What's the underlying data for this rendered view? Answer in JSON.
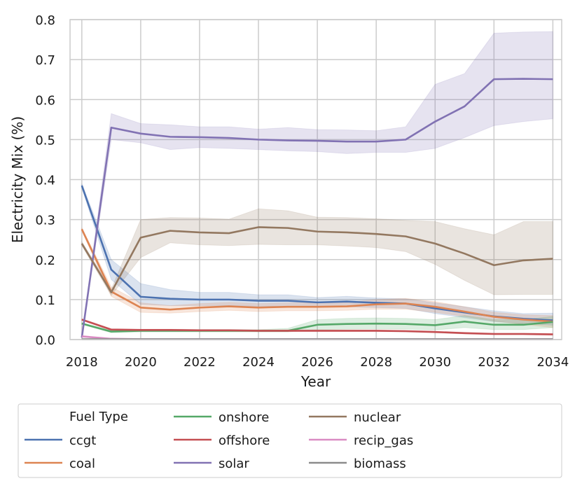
{
  "chart_data": {
    "type": "line",
    "title": "",
    "xlabel": "Year",
    "ylabel": "Electricity Mix (%)",
    "xlim": [
      2017.6,
      2034.3
    ],
    "ylim": [
      0.0,
      0.8
    ],
    "xticks": [
      2018,
      2020,
      2022,
      2024,
      2026,
      2028,
      2030,
      2032,
      2034
    ],
    "yticks": [
      0.0,
      0.1,
      0.2,
      0.3,
      0.4,
      0.5,
      0.6,
      0.7,
      0.8
    ],
    "xtick_labels": [
      "2018",
      "2020",
      "2022",
      "2024",
      "2026",
      "2028",
      "2030",
      "2032",
      "2034"
    ],
    "ytick_labels": [
      "0.0",
      "0.1",
      "0.2",
      "0.3",
      "0.4",
      "0.5",
      "0.6",
      "0.7",
      "0.8"
    ],
    "grid": true,
    "legend": {
      "title": "Fuel Type",
      "placement": "below-chart",
      "columns": 4
    },
    "x": [
      2018,
      2019,
      2020,
      2021,
      2022,
      2023,
      2024,
      2025,
      2026,
      2027,
      2028,
      2029,
      2030,
      2031,
      2032,
      2033,
      2034
    ],
    "series": [
      {
        "name": "ccgt",
        "color": "#4c72b0",
        "values": [
          0.385,
          0.175,
          0.107,
          0.102,
          0.1,
          0.1,
          0.097,
          0.097,
          0.093,
          0.095,
          0.092,
          0.09,
          0.078,
          0.068,
          0.058,
          0.052,
          0.048
        ],
        "lower": [
          0.38,
          0.15,
          0.088,
          0.085,
          0.085,
          0.085,
          0.083,
          0.083,
          0.08,
          0.082,
          0.08,
          0.078,
          0.065,
          0.055,
          0.045,
          0.04,
          0.036
        ],
        "upper": [
          0.39,
          0.2,
          0.14,
          0.125,
          0.118,
          0.118,
          0.112,
          0.112,
          0.105,
          0.108,
          0.104,
          0.102,
          0.092,
          0.082,
          0.072,
          0.065,
          0.066
        ]
      },
      {
        "name": "coal",
        "color": "#dd8452",
        "values": [
          0.276,
          0.12,
          0.08,
          0.075,
          0.08,
          0.083,
          0.08,
          0.082,
          0.082,
          0.083,
          0.088,
          0.09,
          0.082,
          0.07,
          0.057,
          0.05,
          0.045
        ],
        "lower": [
          0.272,
          0.108,
          0.068,
          0.066,
          0.07,
          0.073,
          0.07,
          0.072,
          0.072,
          0.073,
          0.076,
          0.076,
          0.068,
          0.058,
          0.046,
          0.038,
          0.03
        ],
        "upper": [
          0.28,
          0.132,
          0.092,
          0.085,
          0.09,
          0.093,
          0.09,
          0.092,
          0.092,
          0.093,
          0.1,
          0.103,
          0.095,
          0.082,
          0.068,
          0.062,
          0.06
        ]
      },
      {
        "name": "onshore",
        "color": "#55a868",
        "values": [
          0.04,
          0.02,
          0.022,
          0.022,
          0.022,
          0.022,
          0.022,
          0.022,
          0.037,
          0.039,
          0.04,
          0.039,
          0.036,
          0.045,
          0.037,
          0.037,
          0.044
        ],
        "lower": [
          0.038,
          0.017,
          0.019,
          0.019,
          0.019,
          0.019,
          0.019,
          0.019,
          0.025,
          0.026,
          0.027,
          0.026,
          0.024,
          0.03,
          0.025,
          0.025,
          0.03
        ],
        "upper": [
          0.042,
          0.023,
          0.025,
          0.025,
          0.025,
          0.025,
          0.025,
          0.028,
          0.05,
          0.053,
          0.054,
          0.053,
          0.05,
          0.06,
          0.05,
          0.05,
          0.058
        ]
      },
      {
        "name": "offshore",
        "color": "#c44e52",
        "values": [
          0.05,
          0.025,
          0.024,
          0.024,
          0.023,
          0.023,
          0.022,
          0.022,
          0.022,
          0.022,
          0.022,
          0.021,
          0.019,
          0.016,
          0.014,
          0.014,
          0.013
        ],
        "lower": [
          0.048,
          0.023,
          0.022,
          0.022,
          0.021,
          0.021,
          0.02,
          0.02,
          0.02,
          0.02,
          0.02,
          0.019,
          0.017,
          0.014,
          0.012,
          0.012,
          0.011
        ],
        "upper": [
          0.052,
          0.027,
          0.026,
          0.026,
          0.025,
          0.025,
          0.024,
          0.024,
          0.024,
          0.024,
          0.024,
          0.023,
          0.021,
          0.018,
          0.016,
          0.016,
          0.015
        ]
      },
      {
        "name": "solar",
        "color": "#8172b3",
        "values": [
          0.005,
          0.53,
          0.515,
          0.507,
          0.506,
          0.504,
          0.5,
          0.498,
          0.497,
          0.495,
          0.495,
          0.5,
          0.545,
          0.583,
          0.651,
          0.652,
          0.651
        ],
        "lower": [
          0.003,
          0.5,
          0.492,
          0.475,
          0.48,
          0.478,
          0.475,
          0.472,
          0.47,
          0.465,
          0.468,
          0.468,
          0.478,
          0.505,
          0.535,
          0.545,
          0.552
        ],
        "upper": [
          0.007,
          0.565,
          0.54,
          0.537,
          0.532,
          0.532,
          0.526,
          0.53,
          0.525,
          0.524,
          0.522,
          0.532,
          0.638,
          0.665,
          0.766,
          0.769,
          0.77
        ]
      },
      {
        "name": "nuclear",
        "color": "#937860",
        "values": [
          0.24,
          0.118,
          0.255,
          0.272,
          0.268,
          0.266,
          0.281,
          0.279,
          0.27,
          0.268,
          0.264,
          0.258,
          0.24,
          0.215,
          0.186,
          0.198,
          0.202
        ],
        "lower": [
          0.235,
          0.11,
          0.205,
          0.242,
          0.237,
          0.235,
          0.238,
          0.237,
          0.237,
          0.234,
          0.23,
          0.22,
          0.188,
          0.148,
          0.112,
          0.113,
          0.113
        ],
        "upper": [
          0.245,
          0.126,
          0.3,
          0.305,
          0.304,
          0.301,
          0.327,
          0.322,
          0.306,
          0.305,
          0.302,
          0.298,
          0.295,
          0.277,
          0.262,
          0.295,
          0.295
        ]
      },
      {
        "name": "recip_gas",
        "color": "#da8bc3",
        "values": [
          0.008,
          0.002,
          0.001,
          0.001,
          0.001,
          0.001,
          0.001,
          0.001,
          0.001,
          0.001,
          0.001,
          0.001,
          0.001,
          0.001,
          0.001,
          0.001,
          0.001
        ],
        "lower": [
          0.006,
          0.001,
          0.0,
          0.0,
          0.0,
          0.0,
          0.0,
          0.0,
          0.0,
          0.0,
          0.0,
          0.0,
          0.0,
          0.0,
          0.0,
          0.0,
          0.0
        ],
        "upper": [
          0.01,
          0.003,
          0.002,
          0.002,
          0.002,
          0.002,
          0.002,
          0.002,
          0.002,
          0.002,
          0.002,
          0.002,
          0.002,
          0.002,
          0.002,
          0.002,
          0.002
        ]
      },
      {
        "name": "biomass",
        "color": "#8c8c8c",
        "values": [
          0.001,
          0.001,
          0.001,
          0.001,
          0.001,
          0.001,
          0.001,
          0.001,
          0.001,
          0.001,
          0.001,
          0.001,
          0.001,
          0.001,
          0.001,
          0.001,
          0.001
        ],
        "lower": [
          0.0,
          0.0,
          0.0,
          0.0,
          0.0,
          0.0,
          0.0,
          0.0,
          0.0,
          0.0,
          0.0,
          0.0,
          0.0,
          0.0,
          0.0,
          0.0,
          0.0
        ],
        "upper": [
          0.002,
          0.002,
          0.002,
          0.002,
          0.002,
          0.002,
          0.002,
          0.002,
          0.002,
          0.002,
          0.002,
          0.002,
          0.002,
          0.002,
          0.002,
          0.002,
          0.002
        ]
      }
    ]
  }
}
